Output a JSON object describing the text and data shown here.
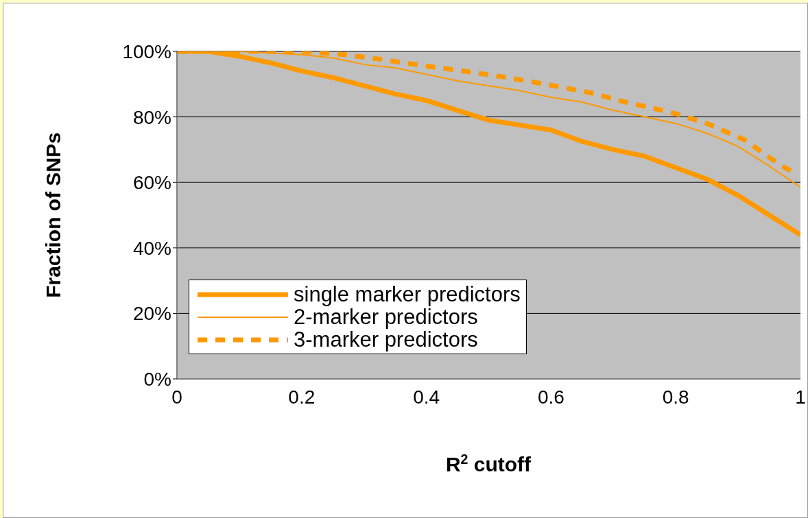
{
  "chart_data": {
    "type": "line",
    "xlabel": "R$^{2}$ cutoff",
    "ylabel": "Fraction of SNPs",
    "xlim": [
      0,
      1
    ],
    "xticks": [
      0,
      0.2,
      0.4,
      0.6,
      0.8,
      1
    ],
    "ylim": [
      0,
      100
    ],
    "yticks": [
      {
        "value": 0,
        "label": "0%"
      },
      {
        "value": 20,
        "label": "20%"
      },
      {
        "value": 40,
        "label": "40%"
      },
      {
        "value": 60,
        "label": "60%"
      },
      {
        "value": 80,
        "label": "80%"
      },
      {
        "value": 100,
        "label": "100%"
      }
    ],
    "grid": "y",
    "legend": "bottom left",
    "marker": "none",
    "series": [
      {
        "name": "single marker predictors",
        "color": "#ff9900",
        "line_style": "solid",
        "x": [
          0,
          0.05,
          0.1,
          0.15,
          0.2,
          0.25,
          0.3,
          0.35,
          0.4,
          0.45,
          0.5,
          0.55,
          0.6,
          0.65,
          0.7,
          0.75,
          0.8,
          0.85,
          0.9,
          0.95,
          1
        ],
        "values": [
          100,
          100,
          98.5,
          96.5,
          94,
          92,
          89.5,
          87,
          85,
          82,
          79,
          77.5,
          76,
          72.5,
          70,
          68,
          64.5,
          61,
          56,
          50,
          44
        ]
      },
      {
        "name": "2-marker predictors",
        "color": "#ff9900",
        "line_style": "solid",
        "x": [
          0,
          0.1,
          0.2,
          0.25,
          0.3,
          0.35,
          0.4,
          0.45,
          0.5,
          0.55,
          0.6,
          0.65,
          0.7,
          0.75,
          0.8,
          0.85,
          0.9,
          0.95,
          1
        ],
        "values": [
          100,
          100,
          99,
          98,
          96,
          95,
          93,
          91,
          89.5,
          88,
          86,
          84.5,
          82,
          80,
          78,
          75,
          71,
          65,
          58.5
        ]
      },
      {
        "name": "3-marker predictors",
        "color": "#ff9900",
        "line_style": "dashed",
        "x": [
          0,
          0.1,
          0.2,
          0.27,
          0.33,
          0.4,
          0.46,
          0.53,
          0.59,
          0.66,
          0.72,
          0.79,
          0.85,
          0.91,
          0.97,
          0.99
        ],
        "values": [
          100,
          100,
          100,
          99,
          97.5,
          95.5,
          94,
          92,
          90,
          87.5,
          84.5,
          81.5,
          78,
          73,
          65,
          63
        ]
      }
    ]
  }
}
